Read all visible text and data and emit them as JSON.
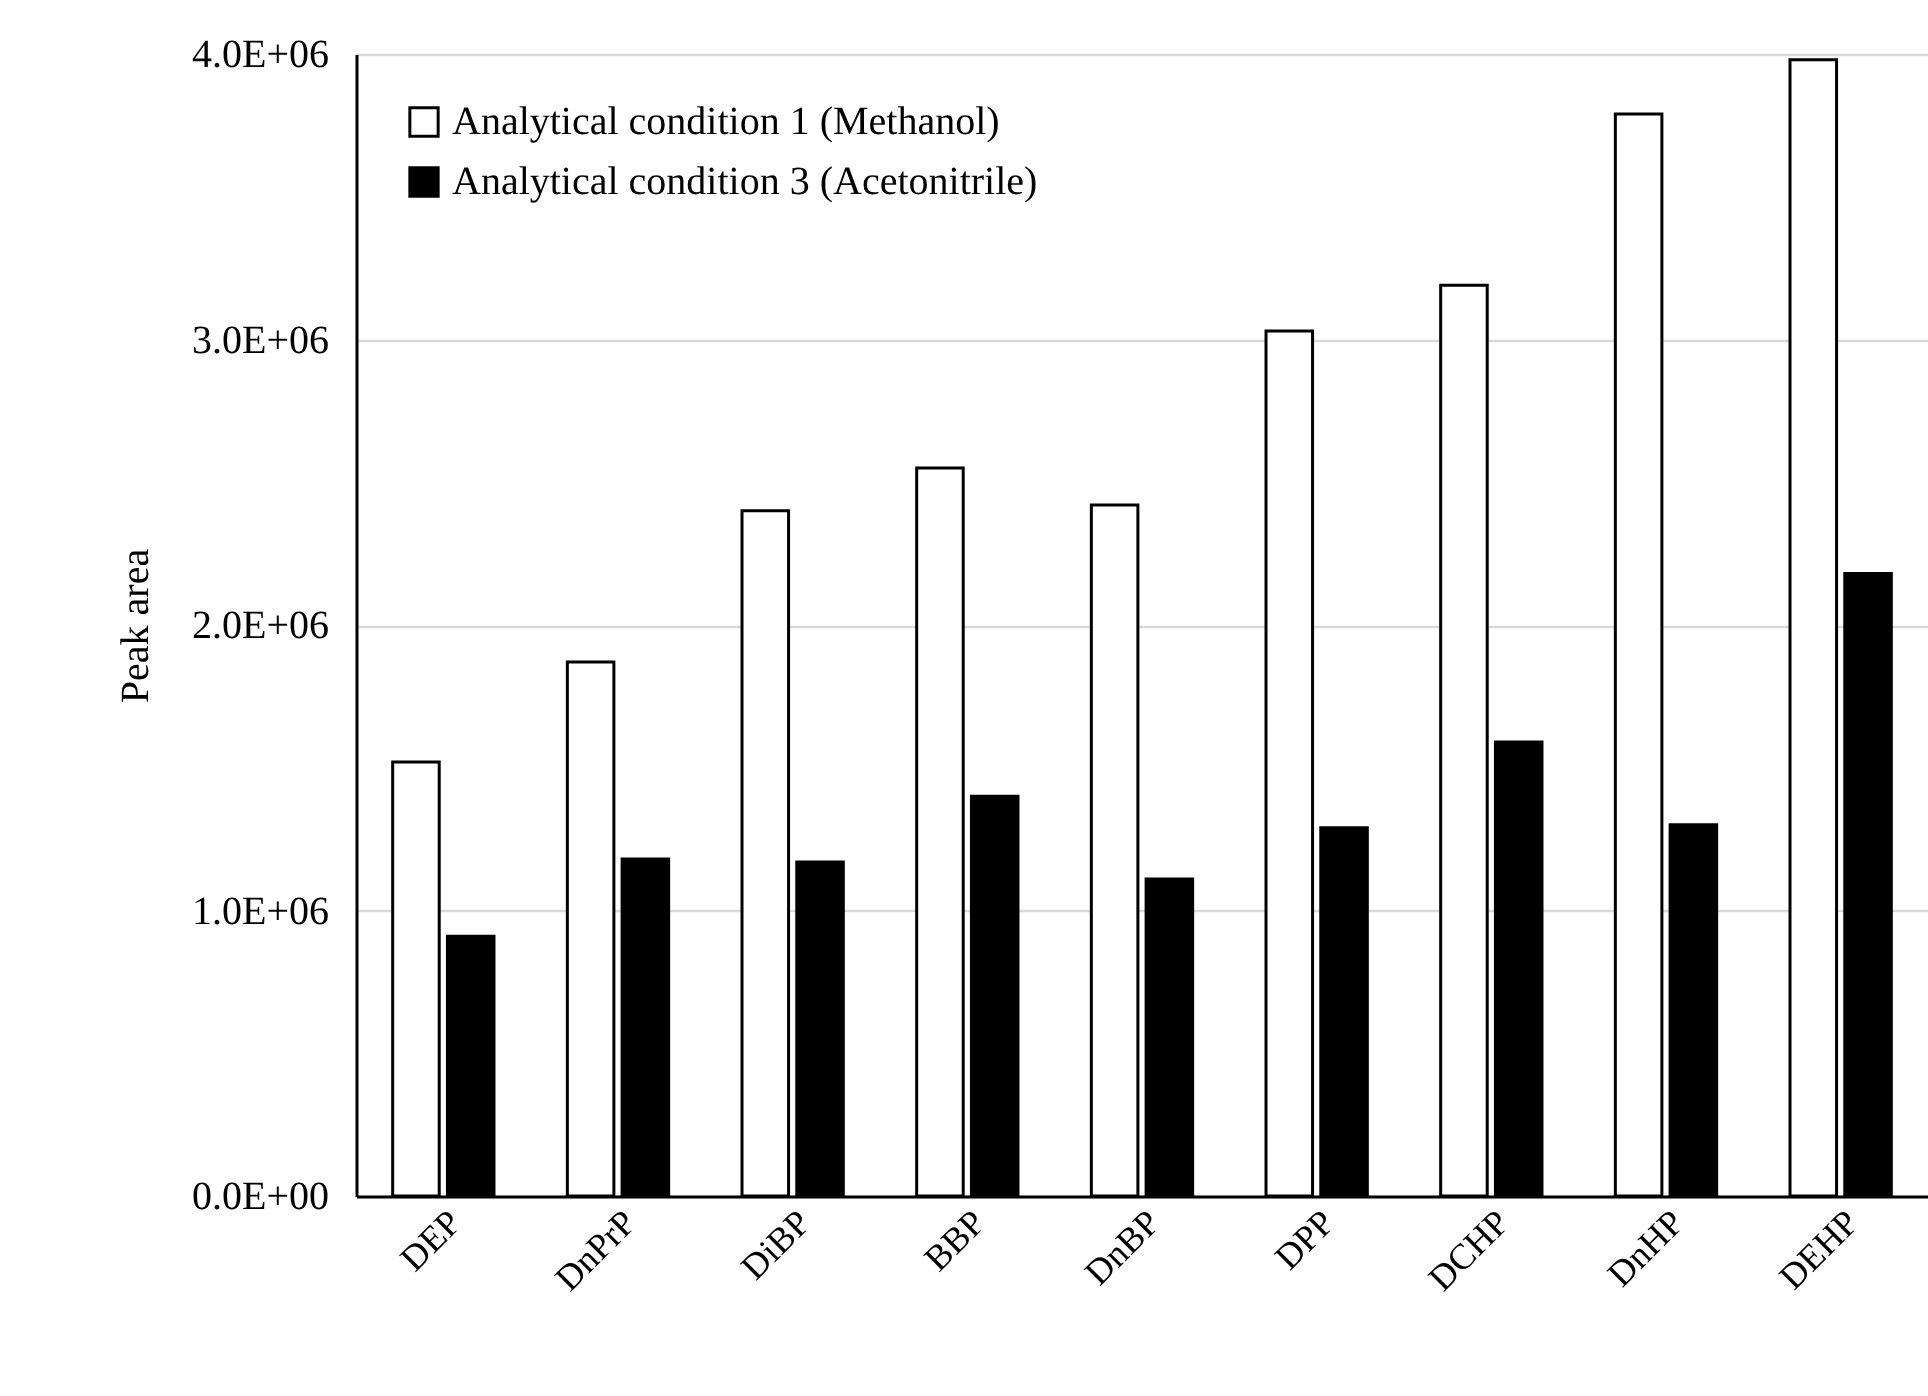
{
  "chart_data": {
    "type": "bar",
    "ylabel": "Peak area",
    "categories": [
      "DEP",
      "DnPrP",
      "DiBP",
      "BBP",
      "DnBP",
      "DPP",
      "DCHP",
      "DnHP",
      "DEHP"
    ],
    "series": [
      {
        "name": "Analytical condition 1 (Methanol)",
        "color": "#ffffff",
        "values": [
          1520000,
          1870000,
          2400000,
          2550000,
          2420000,
          3030000,
          3190000,
          3790000,
          3980000
        ]
      },
      {
        "name": "Analytical condition 3 (Acetonitrile)",
        "color": "#000000",
        "values": [
          910000,
          1180000,
          1170000,
          1400000,
          1110000,
          1290000,
          1590000,
          1300000,
          2180000
        ]
      }
    ],
    "ylim": [
      0,
      4000000
    ],
    "yticks": [
      {
        "value": 0,
        "label": "0.0E+00"
      },
      {
        "value": 1000000,
        "label": "1.0E+06"
      },
      {
        "value": 2000000,
        "label": "2.0E+06"
      },
      {
        "value": 3000000,
        "label": "3.0E+06"
      },
      {
        "value": 4000000,
        "label": "4.0E+06"
      }
    ],
    "grid": "y",
    "legend": "top left"
  }
}
